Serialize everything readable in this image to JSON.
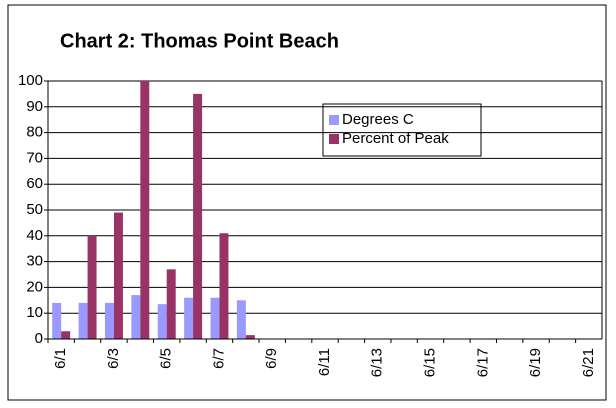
{
  "chart_data": {
    "type": "bar",
    "title": "Chart 2:  Thomas Point Beach",
    "categories": [
      "6/1",
      null,
      "6/3",
      null,
      "6/5",
      null,
      "6/7",
      null,
      "6/9",
      null,
      "6/11",
      null,
      "6/13",
      null,
      "6/15",
      null,
      "6/17",
      null,
      "6/19",
      null,
      "6/21"
    ],
    "series": [
      {
        "name": "Degrees C",
        "color": "#9999ff",
        "values": [
          14,
          14,
          14,
          17,
          13.5,
          16,
          16,
          15,
          null,
          null,
          null,
          null,
          null,
          null,
          null,
          null,
          null,
          null,
          null,
          null,
          null
        ]
      },
      {
        "name": "Percent of Peak",
        "color": "#993366",
        "values": [
          3,
          40,
          49,
          100,
          27,
          95,
          41,
          1.5,
          null,
          null,
          null,
          null,
          null,
          null,
          null,
          null,
          null,
          null,
          null,
          null,
          null
        ]
      }
    ],
    "ylim": [
      0,
      100
    ],
    "yticks": [
      0,
      10,
      20,
      30,
      40,
      50,
      60,
      70,
      80,
      90,
      100
    ],
    "grid": true
  }
}
